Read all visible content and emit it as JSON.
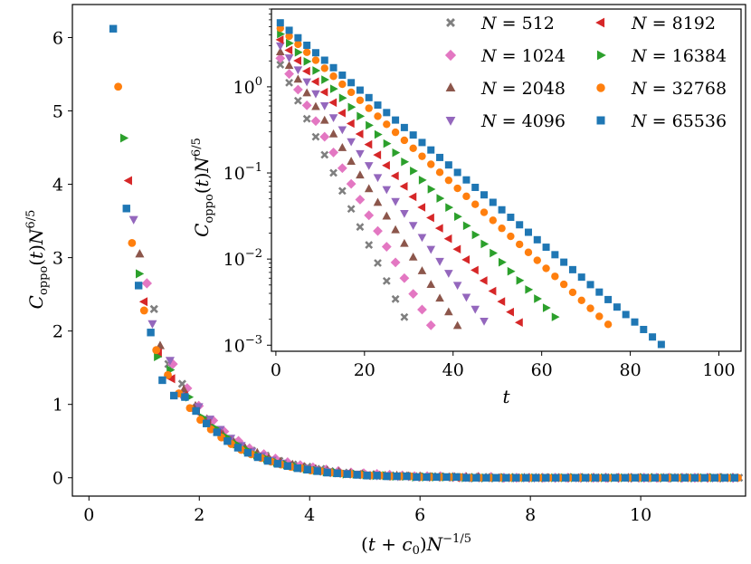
{
  "chart_data": [
    {
      "id": "main",
      "type": "scatter",
      "title": "",
      "xlabel": "(t + c0)N^(-1/5)",
      "ylabel": "Coppo(t)N^(6/5)",
      "xlim": [
        -0.3,
        11.9
      ],
      "ylim": [
        -0.25,
        6.45
      ],
      "xticks": [
        0,
        2,
        4,
        6,
        8,
        10
      ],
      "yticks": [
        0,
        1,
        2,
        3,
        4,
        5,
        6
      ],
      "grid": false,
      "series": [
        {
          "name": "N = 512",
          "color": "#7f7f7f",
          "marker": "x",
          "x": [
            1.18,
            1.44,
            1.69,
            1.94,
            2.19,
            2.44,
            2.7,
            2.95,
            3.2,
            3.45,
            3.7,
            3.96,
            4.21,
            4.46,
            4.71,
            4.97,
            5.22,
            5.47,
            5.72,
            5.98,
            6.23,
            6.48,
            6.73,
            6.98,
            7.24,
            7.49,
            7.74,
            7.99,
            8.25,
            8.5,
            8.75,
            9.0,
            9.25,
            9.51,
            9.76,
            10.01,
            10.26,
            10.51,
            10.77,
            11.02,
            11.27,
            11.52,
            11.78
          ],
          "y": [
            2.3,
            1.55,
            1.28,
            0.95,
            0.75,
            0.6,
            0.48,
            0.37,
            0.3,
            0.23,
            0.18,
            0.15,
            0.12,
            0.09,
            0.07,
            0.05,
            0.04,
            0.03,
            0.03,
            0.02,
            0.02,
            0.01,
            0.01,
            0.01,
            0.01,
            0,
            0,
            0,
            0,
            0,
            0,
            0,
            0,
            0,
            0,
            0,
            0,
            0,
            0,
            0,
            0,
            0,
            0
          ]
        },
        {
          "name": "N = 1024",
          "color": "#e377c2",
          "marker": "diamond",
          "x": [
            1.05,
            1.52,
            1.78,
            1.99,
            2.25,
            2.45,
            2.71,
            2.91,
            3.17,
            3.38,
            3.6,
            3.83,
            4.06,
            4.3,
            4.52,
            4.75,
            4.98,
            5.22,
            5.45,
            5.68,
            5.9,
            6.13,
            6.37,
            6.6,
            6.83,
            7.06,
            7.29,
            7.52,
            7.75,
            7.98,
            8.22,
            8.45,
            8.68,
            8.91,
            9.14,
            9.37,
            9.6,
            9.83,
            10.06,
            10.29,
            10.52,
            10.75,
            10.98,
            11.21,
            11.44,
            11.67
          ],
          "y": [
            2.65,
            1.55,
            1.22,
            0.98,
            0.78,
            0.63,
            0.5,
            0.4,
            0.32,
            0.26,
            0.21,
            0.17,
            0.14,
            0.11,
            0.09,
            0.07,
            0.06,
            0.05,
            0.04,
            0.03,
            0.02,
            0.02,
            0.02,
            0.01,
            0.01,
            0.01,
            0.01,
            0,
            0,
            0,
            0,
            0,
            0,
            0,
            0,
            0,
            0,
            0,
            0,
            0,
            0,
            0,
            0,
            0,
            0,
            0
          ]
        },
        {
          "name": "N = 2048",
          "color": "#8c564b",
          "marker": "triangle-up",
          "x": [
            0.92,
            1.29,
            1.72,
            1.93,
            2.14,
            2.39,
            2.6,
            2.82,
            3.05,
            3.26,
            3.47,
            3.69,
            3.9,
            4.11,
            4.32,
            4.53,
            4.74,
            4.95,
            5.16,
            5.37,
            5.58,
            5.79,
            6.0,
            6.21,
            6.42,
            6.63,
            6.84,
            7.05,
            7.26,
            7.47,
            7.68,
            7.89,
            8.1,
            8.31,
            8.52,
            8.73,
            8.94,
            9.15,
            9.36,
            9.57,
            9.78,
            9.99,
            10.2,
            10.41,
            10.62,
            10.83,
            11.04,
            11.25,
            11.46,
            11.67
          ],
          "y": [
            3.05,
            1.8,
            1.2,
            0.98,
            0.8,
            0.64,
            0.52,
            0.42,
            0.34,
            0.27,
            0.22,
            0.18,
            0.15,
            0.12,
            0.1,
            0.08,
            0.06,
            0.05,
            0.04,
            0.03,
            0.03,
            0.02,
            0.02,
            0.01,
            0.01,
            0.01,
            0.01,
            0.01,
            0,
            0,
            0,
            0,
            0,
            0,
            0,
            0,
            0,
            0,
            0,
            0,
            0,
            0,
            0,
            0,
            0,
            0,
            0,
            0,
            0,
            0
          ]
        },
        {
          "name": "N = 4096",
          "color": "#9467bd",
          "marker": "triangle-down",
          "x": [
            0.81,
            1.15,
            1.47,
            1.68,
            1.99,
            2.19,
            2.38,
            2.57,
            2.76,
            2.95,
            3.13,
            3.32,
            3.51,
            3.7,
            3.89,
            4.08,
            4.27,
            4.46,
            4.65,
            4.84,
            5.03,
            5.22,
            5.41,
            5.6,
            5.79,
            5.98,
            6.17,
            6.36,
            6.55,
            6.74,
            6.93,
            7.12,
            7.31,
            7.5,
            7.69,
            7.88,
            8.07,
            8.26,
            8.45,
            8.64,
            8.83,
            9.02,
            9.21,
            9.4,
            9.59,
            9.78,
            9.97,
            10.16,
            10.35,
            10.54,
            10.73,
            10.92,
            11.11,
            11.3,
            11.49,
            11.68
          ],
          "y": [
            3.52,
            2.1,
            1.6,
            1.12,
            0.97,
            0.8,
            0.66,
            0.54,
            0.44,
            0.36,
            0.3,
            0.24,
            0.2,
            0.16,
            0.13,
            0.11,
            0.09,
            0.07,
            0.06,
            0.05,
            0.04,
            0.03,
            0.03,
            0.02,
            0.02,
            0.01,
            0.01,
            0.01,
            0.01,
            0.01,
            0,
            0,
            0,
            0,
            0,
            0,
            0,
            0,
            0,
            0,
            0,
            0,
            0,
            0,
            0,
            0,
            0,
            0,
            0,
            0,
            0,
            0,
            0,
            0,
            0,
            0
          ]
        },
        {
          "name": "N = 8192",
          "color": "#d62728",
          "marker": "triangle-left",
          "x": [
            0.72,
            1.0,
            1.26,
            1.5,
            1.73,
            1.95,
            2.15,
            2.34,
            2.52,
            2.7,
            2.88,
            3.06,
            3.24,
            3.42,
            3.6,
            3.78,
            3.96,
            4.14,
            4.32,
            4.5,
            4.68,
            4.86,
            5.04,
            5.22,
            5.4,
            5.58,
            5.76,
            5.94,
            6.12,
            6.3,
            6.48,
            6.66,
            6.84,
            7.02,
            7.2,
            7.38,
            7.56,
            7.74,
            7.92,
            8.1,
            8.28,
            8.46,
            8.64,
            8.82,
            9.0,
            9.18,
            9.36,
            9.54,
            9.72,
            9.9,
            10.08,
            10.26,
            10.44,
            10.62,
            10.8,
            10.98,
            11.16,
            11.34,
            11.52,
            11.7
          ],
          "y": [
            4.05,
            2.4,
            1.7,
            1.35,
            1.12,
            0.9,
            0.74,
            0.6,
            0.5,
            0.41,
            0.34,
            0.28,
            0.23,
            0.19,
            0.16,
            0.13,
            0.11,
            0.09,
            0.07,
            0.06,
            0.05,
            0.04,
            0.03,
            0.03,
            0.02,
            0.02,
            0.02,
            0.01,
            0.01,
            0.01,
            0.01,
            0,
            0,
            0,
            0,
            0,
            0,
            0,
            0,
            0,
            0,
            0,
            0,
            0,
            0,
            0,
            0,
            0,
            0,
            0,
            0,
            0,
            0,
            0,
            0,
            0,
            0,
            0,
            0,
            0
          ]
        },
        {
          "name": "N = 16384",
          "color": "#2ca02c",
          "marker": "triangle-right",
          "x": [
            0.63,
            0.91,
            1.24,
            1.47,
            1.81,
            2.06,
            2.28,
            2.48,
            2.67,
            2.86,
            3.04,
            3.22,
            3.4,
            3.58,
            3.76,
            3.94,
            4.12,
            4.3,
            4.48,
            4.66,
            4.84,
            5.02,
            5.2,
            5.38,
            5.56,
            5.74,
            5.92,
            6.1,
            6.28,
            6.46,
            6.64,
            6.82,
            7.0,
            7.18,
            7.36,
            7.54,
            7.72,
            7.9,
            8.08,
            8.26,
            8.44,
            8.62,
            8.8,
            8.98,
            9.16,
            9.34,
            9.52,
            9.7,
            9.88,
            10.06,
            10.24,
            10.42,
            10.6,
            10.78,
            10.96,
            11.14,
            11.32,
            11.5,
            11.68
          ],
          "y": [
            4.63,
            2.78,
            1.65,
            1.47,
            1.1,
            0.82,
            0.68,
            0.56,
            0.46,
            0.38,
            0.31,
            0.26,
            0.21,
            0.18,
            0.15,
            0.12,
            0.1,
            0.08,
            0.07,
            0.05,
            0.05,
            0.04,
            0.03,
            0.03,
            0.02,
            0.02,
            0.01,
            0.01,
            0.01,
            0.01,
            0.01,
            0,
            0,
            0,
            0,
            0,
            0,
            0,
            0,
            0,
            0,
            0,
            0,
            0,
            0,
            0,
            0,
            0,
            0,
            0,
            0,
            0,
            0,
            0,
            0,
            0,
            0,
            0,
            0
          ]
        },
        {
          "name": "N = 32768",
          "color": "#ff7f0e",
          "marker": "circle",
          "x": [
            0.53,
            0.78,
            1.0,
            1.22,
            1.43,
            1.63,
            1.83,
            2.02,
            2.21,
            2.4,
            2.58,
            2.76,
            2.94,
            3.12,
            3.3,
            3.48,
            3.66,
            3.84,
            4.02,
            4.2,
            4.38,
            4.56,
            4.74,
            4.92,
            5.1,
            5.28,
            5.46,
            5.64,
            5.82,
            6.0,
            6.18,
            6.36,
            6.54,
            6.72,
            6.9,
            7.08,
            7.26,
            7.44,
            7.62,
            7.8,
            7.98,
            8.16,
            8.34,
            8.52,
            8.7,
            8.88,
            9.06,
            9.24,
            9.42,
            9.6,
            9.78,
            9.96,
            10.14,
            10.32,
            10.5,
            10.68,
            10.86,
            11.04,
            11.22,
            11.4,
            11.58,
            11.76
          ],
          "y": [
            5.33,
            3.2,
            2.28,
            1.74,
            1.4,
            1.15,
            0.95,
            0.79,
            0.66,
            0.55,
            0.46,
            0.38,
            0.32,
            0.27,
            0.22,
            0.18,
            0.15,
            0.13,
            0.1,
            0.09,
            0.07,
            0.06,
            0.05,
            0.04,
            0.03,
            0.03,
            0.02,
            0.02,
            0.02,
            0.01,
            0.01,
            0.01,
            0.01,
            0.01,
            0,
            0,
            0,
            0,
            0,
            0,
            0,
            0,
            0,
            0,
            0,
            0,
            0,
            0,
            0,
            0,
            0,
            0,
            0,
            0,
            0,
            0,
            0,
            0,
            0,
            0,
            0,
            0
          ]
        },
        {
          "name": "N = 65536",
          "color": "#1f77b4",
          "marker": "square",
          "x": [
            0.44,
            0.68,
            0.9,
            1.12,
            1.33,
            1.54,
            1.74,
            1.94,
            2.13,
            2.32,
            2.51,
            2.7,
            2.88,
            3.06,
            3.24,
            3.42,
            3.6,
            3.78,
            3.96,
            4.14,
            4.32,
            4.5,
            4.68,
            4.86,
            5.04,
            5.22,
            5.4,
            5.58,
            5.76,
            5.94,
            6.12,
            6.3,
            6.48,
            6.66,
            6.84,
            7.02,
            7.2,
            7.38,
            7.56,
            7.74,
            7.92,
            8.1,
            8.28,
            8.46,
            8.64,
            8.82,
            9.0,
            9.18,
            9.36,
            9.54,
            9.72,
            9.9,
            10.08,
            10.26,
            10.44,
            10.62,
            10.8,
            10.98,
            11.16,
            11.34,
            11.52,
            11.7
          ],
          "y": [
            6.12,
            3.67,
            2.62,
            1.98,
            1.33,
            1.12,
            1.1,
            0.91,
            0.74,
            0.62,
            0.5,
            0.41,
            0.34,
            0.28,
            0.23,
            0.19,
            0.16,
            0.13,
            0.11,
            0.09,
            0.07,
            0.06,
            0.05,
            0.04,
            0.03,
            0.03,
            0.02,
            0.02,
            0.02,
            0.01,
            0.01,
            0.01,
            0.01,
            0.01,
            0,
            0,
            0,
            0,
            0,
            0,
            0,
            0,
            0,
            0,
            0,
            0,
            0,
            0,
            0,
            0,
            0,
            0,
            0,
            0,
            0,
            0,
            0,
            0,
            0,
            0,
            0,
            0
          ]
        }
      ]
    },
    {
      "id": "inset",
      "type": "scatter",
      "title": "",
      "xlabel": "t",
      "ylabel": "Coppo(t)N^(6/5)",
      "xscale": "linear",
      "yscale": "log",
      "xlim": [
        -1,
        105
      ],
      "ylim": [
        0.00085,
        8
      ],
      "xticks": [
        0,
        20,
        40,
        60,
        80,
        100
      ],
      "yticks": [
        0.001,
        0.01,
        0.1,
        1
      ],
      "ytick_labels": [
        "10^-3",
        "10^-2",
        "10^-1",
        "10^0"
      ],
      "grid": false,
      "legend_position": "top-right",
      "series_params": [
        {
          "name": "N = 512",
          "color": "#7f7f7f",
          "marker": "x",
          "a": 2.3,
          "b": 0.241,
          "tmax": 29
        },
        {
          "name": "N = 1024",
          "color": "#e377c2",
          "marker": "diamond",
          "a": 2.65,
          "b": 0.21,
          "tmax": 36
        },
        {
          "name": "N = 2048",
          "color": "#8c564b",
          "marker": "triangle-up",
          "a": 3.05,
          "b": 0.183,
          "tmax": 42
        },
        {
          "name": "N = 4096",
          "color": "#9467bd",
          "marker": "triangle-down",
          "a": 3.52,
          "b": 0.16,
          "tmax": 48
        },
        {
          "name": "N = 8192",
          "color": "#d62728",
          "marker": "triangle-left",
          "a": 4.05,
          "b": 0.14,
          "tmax": 55
        },
        {
          "name": "N = 16384",
          "color": "#2ca02c",
          "marker": "triangle-right",
          "a": 4.63,
          "b": 0.122,
          "tmax": 63
        },
        {
          "name": "N = 32768",
          "color": "#ff7f0e",
          "marker": "circle",
          "a": 5.33,
          "b": 0.107,
          "tmax": 76
        },
        {
          "name": "N = 65536",
          "color": "#1f77b4",
          "marker": "square",
          "a": 6.12,
          "b": 0.1,
          "tmax": 87
        }
      ],
      "legend": {
        "columns": [
          [
            "N = 512",
            "N = 1024",
            "N = 2048",
            "N = 4096"
          ],
          [
            "N = 8192",
            "N = 16384",
            "N = 32768",
            "N = 65536"
          ]
        ]
      }
    }
  ]
}
